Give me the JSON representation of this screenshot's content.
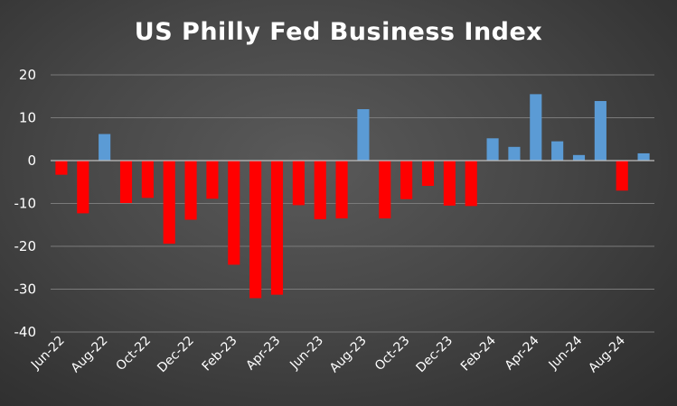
{
  "chart_data": {
    "type": "bar",
    "title": "US Philly Fed Business Index",
    "xlabel": "",
    "ylabel": "",
    "ylim": [
      -40,
      20
    ],
    "yticks": [
      20,
      10,
      0,
      -10,
      -20,
      -30,
      -40
    ],
    "grid": true,
    "legend": "none",
    "categories": [
      "Jun-22",
      "Jul-22",
      "Aug-22",
      "Sep-22",
      "Oct-22",
      "Nov-22",
      "Dec-22",
      "Jan-23",
      "Feb-23",
      "Mar-23",
      "Apr-23",
      "May-23",
      "Jun-23",
      "Jul-23",
      "Aug-23",
      "Sep-23",
      "Oct-23",
      "Nov-23",
      "Dec-23",
      "Jan-24",
      "Feb-24",
      "Mar-24",
      "Apr-24",
      "May-24",
      "Jun-24",
      "Jul-24",
      "Aug-24",
      "Sep-24"
    ],
    "xtick_labels": [
      "Jun-22",
      "Aug-22",
      "Oct-22",
      "Dec-22",
      "Feb-23",
      "Apr-23",
      "Jun-23",
      "Aug-23",
      "Oct-23",
      "Dec-23",
      "Feb-24",
      "Apr-24",
      "Jun-24",
      "Aug-24"
    ],
    "values": [
      -3.3,
      -12.3,
      6.2,
      -9.9,
      -8.7,
      -19.4,
      -13.8,
      -8.9,
      -24.3,
      -32.1,
      -31.3,
      -10.4,
      -13.7,
      -13.5,
      12.0,
      -13.5,
      -9.0,
      -5.9,
      -10.5,
      -10.6,
      5.2,
      3.2,
      15.5,
      4.5,
      1.3,
      13.9,
      -7.0,
      1.7
    ],
    "colors": {
      "positive": "#5b9bd5",
      "negative": "#ff0000",
      "grid": "#7a7a7a",
      "text": "#ffffff"
    }
  }
}
